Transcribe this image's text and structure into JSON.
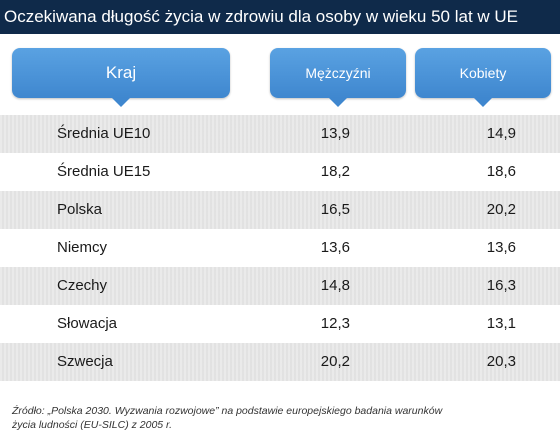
{
  "title": "Oczekiwana długość życia w zdrowiu dla osoby w wieku 50 lat w UE",
  "chart_data": {
    "type": "table",
    "title": "Oczekiwana długość życia w zdrowiu dla osoby w wieku 50 lat w UE",
    "columns": [
      "Kraj",
      "Mężczyźni",
      "Kobiety"
    ],
    "rows": [
      {
        "country": "Średnia UE10",
        "men": "13,9",
        "women": "14,9"
      },
      {
        "country": "Średnia UE15",
        "men": "18,2",
        "women": "18,6"
      },
      {
        "country": "Polska",
        "men": "16,5",
        "women": "20,2"
      },
      {
        "country": "Niemcy",
        "men": "13,6",
        "women": "13,6"
      },
      {
        "country": "Czechy",
        "men": "14,8",
        "women": "16,3"
      },
      {
        "country": "Słowacja",
        "men": "12,3",
        "women": "13,1"
      },
      {
        "country": "Szwecja",
        "men": "20,2",
        "women": "20,3"
      }
    ]
  },
  "source_line1": "Źródło: „Polska 2030. Wyzwania rozwojowe” na podstawie europejskiego badania warunków",
  "source_line2": "życia ludności (EU-SILC) z 2005 r.",
  "colors": {
    "title_bg": "#0f2a4a",
    "header_bg": "#4a93d8",
    "stripe": "#e6e6e6"
  }
}
